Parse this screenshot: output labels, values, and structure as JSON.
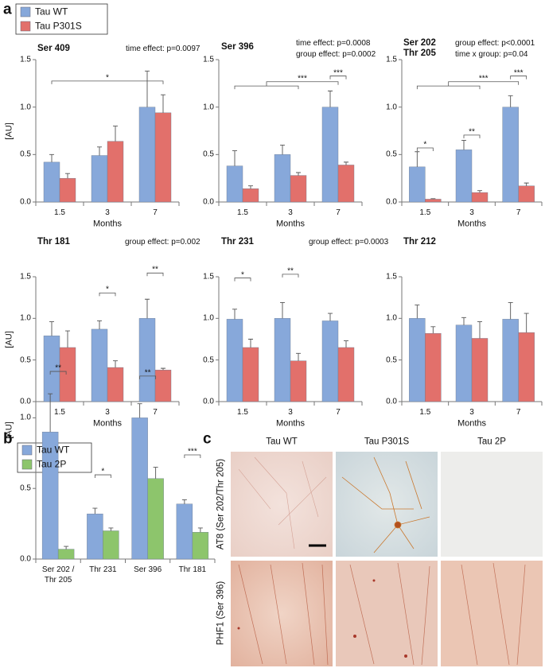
{
  "panel_labels": [
    "a",
    "b",
    "c"
  ],
  "chart_data": [
    {
      "type": "bar",
      "title": "Ser 409",
      "annotations": [
        "time effect: p=0.0097"
      ],
      "categories": [
        "1.5",
        "3",
        "7"
      ],
      "x_label": "Months",
      "y_label": "[AU]",
      "series": [
        {
          "name": "Tau WT",
          "color": "#87a8da",
          "values": [
            0.42,
            0.49,
            1.0
          ],
          "errors": [
            0.08,
            0.09,
            0.38
          ]
        },
        {
          "name": "Tau P301S",
          "color": "#e2706b",
          "values": [
            0.25,
            0.64,
            0.94
          ],
          "errors": [
            0.05,
            0.16,
            0.19
          ]
        }
      ],
      "significance": [
        "*"
      ],
      "ylim": [
        0,
        1.5
      ],
      "yticks": [
        {
          "value": 0,
          "label": "0.0"
        },
        0.5,
        {
          "value": 1,
          "label": "1.0"
        },
        1.5
      ]
    },
    {
      "type": "bar",
      "title": "Ser 396",
      "annotations": [
        "time effect: p=0.0008",
        "group effect: p=0.0002"
      ],
      "categories": [
        "1.5",
        "3",
        "7"
      ],
      "x_label": "Months",
      "series": [
        {
          "name": "Tau WT",
          "color": "#87a8da",
          "values": [
            0.38,
            0.5,
            1.0
          ],
          "errors": [
            0.16,
            0.1,
            0.17
          ]
        },
        {
          "name": "Tau P301S",
          "color": "#e2706b",
          "values": [
            0.14,
            0.28,
            0.39
          ],
          "errors": [
            0.03,
            0.03,
            0.03
          ]
        }
      ],
      "significance": [
        "***",
        "***"
      ],
      "ylim": [
        0,
        1.5
      ],
      "yticks": [
        {
          "value": 0,
          "label": "0.0"
        },
        0.5,
        {
          "value": 1,
          "label": "1.0"
        },
        1.5
      ]
    },
    {
      "type": "bar",
      "title": "Ser 202\nThr 205",
      "annotations": [
        "group effect: p<0.0001",
        "time x group: p=0.04"
      ],
      "categories": [
        "1.5",
        "3",
        "7"
      ],
      "x_label": "Months",
      "series": [
        {
          "name": "Tau WT",
          "color": "#87a8da",
          "values": [
            0.37,
            0.55,
            1.0
          ],
          "errors": [
            0.16,
            0.1,
            0.12
          ]
        },
        {
          "name": "Tau P301S",
          "color": "#e2706b",
          "values": [
            0.03,
            0.1,
            0.17
          ],
          "errors": [
            0.005,
            0.02,
            0.03
          ]
        }
      ],
      "significance": [
        "*",
        "**",
        "***",
        "***"
      ],
      "ylim": [
        0,
        1.5
      ],
      "yticks": [
        {
          "value": 0,
          "label": "0.0"
        },
        0.5,
        {
          "value": 1,
          "label": "1.0"
        },
        1.5
      ]
    },
    {
      "type": "bar",
      "title": "Thr 181",
      "annotations": [
        "group effect: p=0.002"
      ],
      "categories": [
        "1.5",
        "3",
        "7"
      ],
      "x_label": "Months",
      "y_label": "[AU]",
      "series": [
        {
          "name": "Tau WT",
          "color": "#87a8da",
          "values": [
            0.79,
            0.87,
            1.0
          ],
          "errors": [
            0.17,
            0.1,
            0.23
          ]
        },
        {
          "name": "Tau P301S",
          "color": "#e2706b",
          "values": [
            0.65,
            0.41,
            0.38
          ],
          "errors": [
            0.2,
            0.08,
            0.02
          ]
        }
      ],
      "significance": [
        "*",
        "**"
      ],
      "ylim": [
        0,
        1.5
      ],
      "yticks": [
        {
          "value": 0,
          "label": "0.0"
        },
        0.5,
        {
          "value": 1,
          "label": "1.0"
        },
        1.5
      ]
    },
    {
      "type": "bar",
      "title": "Thr 231",
      "annotations": [
        "group effect: p=0.0003"
      ],
      "categories": [
        "1.5",
        "3",
        "7"
      ],
      "x_label": "Months",
      "series": [
        {
          "name": "Tau WT",
          "color": "#87a8da",
          "values": [
            0.99,
            1.0,
            0.97
          ],
          "errors": [
            0.12,
            0.19,
            0.09
          ]
        },
        {
          "name": "Tau P301S",
          "color": "#e2706b",
          "values": [
            0.65,
            0.49,
            0.65
          ],
          "errors": [
            0.1,
            0.09,
            0.08
          ]
        }
      ],
      "significance": [
        "*",
        "**"
      ],
      "ylim": [
        0,
        1.5
      ],
      "yticks": [
        {
          "value": 0,
          "label": "0.0"
        },
        0.5,
        {
          "value": 1,
          "label": "1.0"
        },
        1.5
      ]
    },
    {
      "type": "bar",
      "title": "Thr 212",
      "categories": [
        "1.5",
        "3",
        "7"
      ],
      "x_label": "Months",
      "series": [
        {
          "name": "Tau WT",
          "color": "#87a8da",
          "values": [
            1.0,
            0.92,
            0.99
          ],
          "errors": [
            0.16,
            0.09,
            0.2
          ]
        },
        {
          "name": "Tau P301S",
          "color": "#e2706b",
          "values": [
            0.82,
            0.76,
            0.83
          ],
          "errors": [
            0.08,
            0.2,
            0.23
          ]
        }
      ],
      "ylim": [
        0,
        1.5
      ],
      "yticks": [
        {
          "value": 0,
          "label": "0.0"
        },
        0.5,
        {
          "value": 1,
          "label": "1.0"
        },
        1.5
      ]
    },
    {
      "type": "bar",
      "categories": [
        "Ser 202 /\nThr 205",
        "Thr 231",
        "Ser 396",
        "Thr 181"
      ],
      "y_label": "[AU]",
      "series": [
        {
          "name": "Tau WT",
          "color": "#87a8da",
          "values": [
            0.9,
            0.32,
            1.0,
            0.39
          ],
          "errors": [
            0.27,
            0.04,
            0.1,
            0.03
          ]
        },
        {
          "name": "Tau 2P",
          "color": "#8dc56c",
          "values": [
            0.07,
            0.2,
            0.57,
            0.19
          ],
          "errors": [
            0.02,
            0.02,
            0.08,
            0.03
          ]
        }
      ],
      "significance": [
        "**",
        "*",
        "**",
        "***"
      ],
      "ylim": [
        0,
        1.83
      ],
      "yticks": [
        {
          "value": 0,
          "label": "0.0"
        },
        0.5,
        {
          "value": 1,
          "label": "1.0"
        }
      ]
    }
  ],
  "micrographs": {
    "columns": [
      "Tau WT",
      "Tau P301S",
      "Tau 2P"
    ],
    "rows": [
      "AT8 (Ser 202/Thr 205)",
      "PHF1 (Ser 396)"
    ]
  }
}
